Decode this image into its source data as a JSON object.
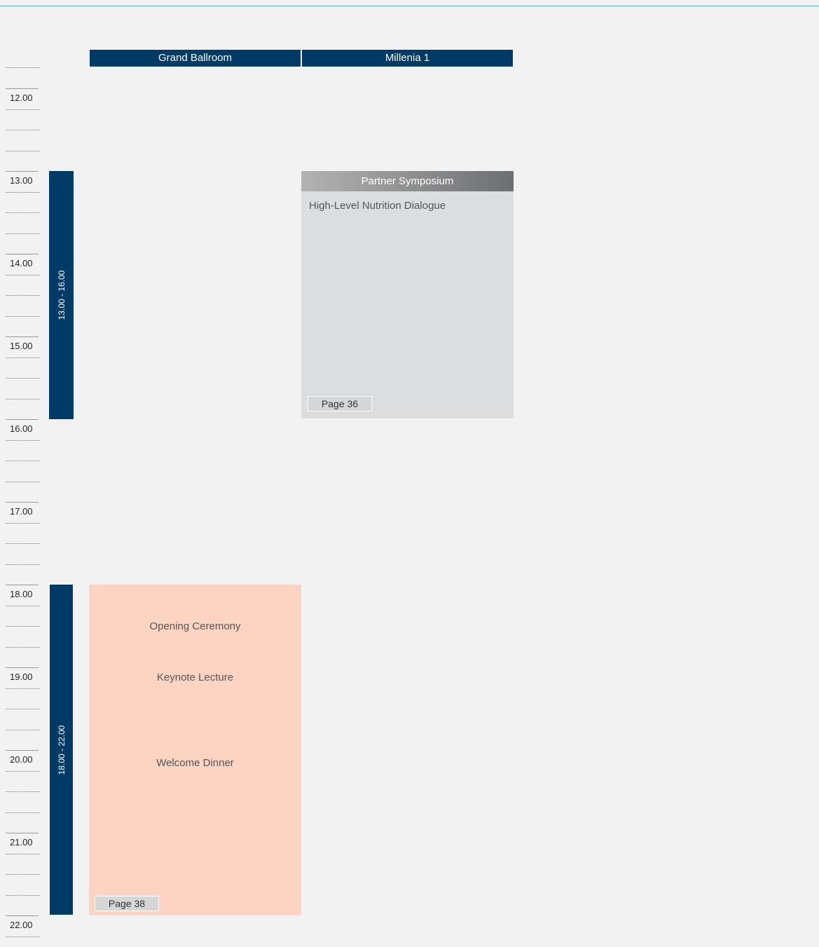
{
  "rooms": [
    "Grand Ballroom",
    "Millenia 1"
  ],
  "times": [
    "12.00",
    "13.00",
    "14.00",
    "15.00",
    "16.00",
    "17.00",
    "18.00",
    "19.00",
    "20.00",
    "21.00",
    "22.00"
  ],
  "time_bars": [
    "13.00 - 16.00",
    "18.00 - 22.00"
  ],
  "sessions": [
    {
      "header": "Partner Symposium",
      "title": "High-Level Nutrition Dialogue",
      "page": "Page 36"
    },
    {
      "items": [
        "Opening Ceremony",
        "Keynote Lecture",
        "Welcome Dinner"
      ],
      "page": "Page 38"
    }
  ]
}
